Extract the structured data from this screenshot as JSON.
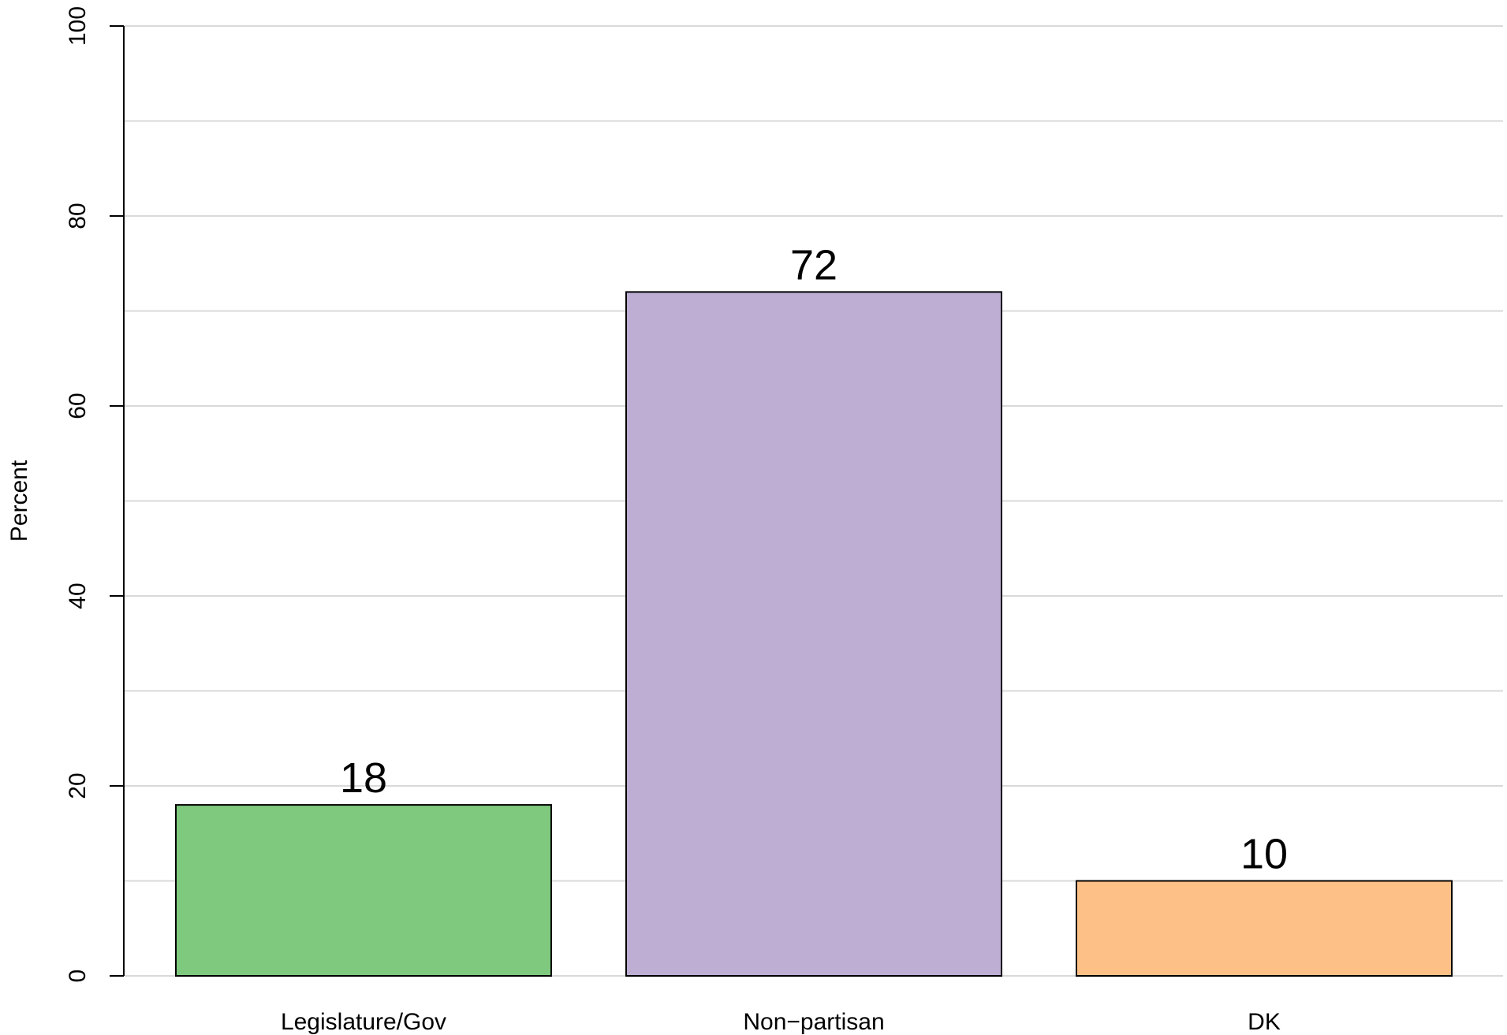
{
  "chart_data": {
    "type": "bar",
    "categories": [
      "Legislature/Gov",
      "Non−partisan",
      "DK"
    ],
    "values": [
      18,
      72,
      10
    ],
    "data_labels": [
      "18",
      "72",
      "10"
    ],
    "colors": [
      "#7fc97f",
      "#beaed4",
      "#fdc086"
    ],
    "title": "",
    "xlabel": "",
    "ylabel": "Percent",
    "ylim": [
      0,
      100
    ],
    "yticks": [
      0,
      20,
      40,
      60,
      80,
      100
    ],
    "ytick_labels": [
      "0",
      "20",
      "40",
      "60",
      "80",
      "100"
    ],
    "gridlines": [
      0,
      10,
      20,
      30,
      40,
      50,
      60,
      70,
      80,
      90,
      100
    ],
    "grid": true,
    "legend": "none"
  }
}
